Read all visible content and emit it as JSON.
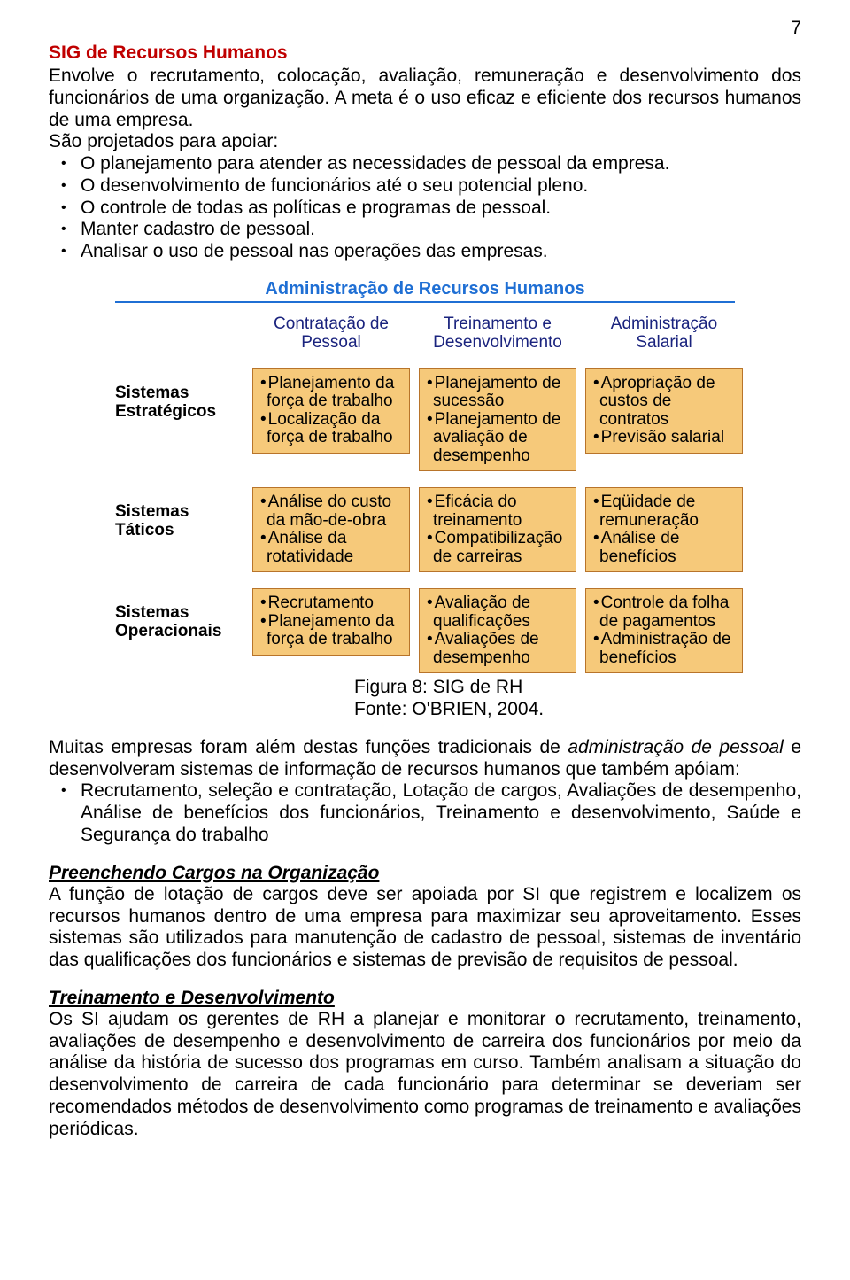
{
  "page_number": "7",
  "colors": {
    "title_red": "#c00000",
    "figure_blue": "#1f6fd4",
    "col_header": "#1a237e",
    "box_fill": "#f6c97a",
    "box_border": "#b8742a",
    "body_text": "#000000",
    "hr_blue": "#1f6fd4"
  },
  "section1": {
    "title": "SIG de Recursos Humanos",
    "p1": "Envolve o recrutamento, colocação, avaliação, remuneração e desenvolvimento dos funcionários de uma organização. A meta é o uso eficaz e eficiente dos recursos humanos de uma empresa.",
    "p2_intro": "São projetados para apoiar:",
    "bullets": [
      "O planejamento para atender as necessidades de pessoal da empresa.",
      "O desenvolvimento de funcionários até o seu potencial pleno.",
      "O controle de todas as políticas e programas de pessoal.",
      "Manter cadastro de pessoal.",
      "Analisar o uso de pessoal nas operações das empresas."
    ]
  },
  "figure": {
    "title": "Administração de Recursos Humanos",
    "col_headers": [
      "Contratação de Pessoal",
      "Treinamento e Desenvolvimento",
      "Administração Salarial"
    ],
    "row_labels": [
      "Sistemas Estratégicos",
      "Sistemas Táticos",
      "Sistemas Operacionais"
    ],
    "cells": [
      [
        [
          "Planejamento da força de trabalho",
          "Localização da força de trabalho"
        ],
        [
          "Planejamento de sucessão",
          "Planejamento de avaliação de desempenho"
        ],
        [
          "Apropriação de custos de contratos",
          "Previsão salarial"
        ]
      ],
      [
        [
          "Análise do custo da mão-de-obra",
          "Análise da rotatividade"
        ],
        [
          "Eficácia do treinamento",
          "Compatibilização de carreiras"
        ],
        [
          "Eqüidade de remuneração",
          "Análise de benefícios"
        ]
      ],
      [
        [
          "Recrutamento",
          "Planejamento da força de trabalho"
        ],
        [
          "Avaliação de qualificações",
          "Avaliações de desempenho"
        ],
        [
          "Controle da folha de pagamentos",
          "Administração de benefícios"
        ]
      ]
    ],
    "caption1": "Figura 8: SIG de RH",
    "caption2": "Fonte: O'BRIEN, 2004."
  },
  "section2": {
    "p1_pre": "Muitas empresas foram além destas funções tradicionais de ",
    "p1_italic": "administração de pessoal",
    "p1_post": " e desenvolveram sistemas de informação de recursos humanos que também apóiam:",
    "bullet_text": "Recrutamento, seleção e contratação, Lotação de cargos, Avaliações de desempenho, Análise de benefícios dos funcionários, Treinamento e desenvolvimento, Saúde e Segurança do trabalho"
  },
  "section3": {
    "title": "Preenchendo Cargos na Organização",
    "p": "A função de lotação de cargos deve ser apoiada por SI que registrem e localizem os recursos humanos dentro de uma empresa para maximizar seu aproveitamento. Esses sistemas são utilizados para manutenção de cadastro de pessoal, sistemas de inventário das qualificações dos funcionários e sistemas de previsão de requisitos de pessoal."
  },
  "section4": {
    "title": "Treinamento e Desenvolvimento",
    "p": "Os SI ajudam os gerentes de RH a planejar e monitorar o recrutamento, treinamento, avaliações de desempenho e desenvolvimento de carreira dos funcionários por meio da análise da história de sucesso dos programas em curso. Também analisam a situação do desenvolvimento de carreira de cada funcionário para determinar se deveriam ser recomendados métodos de desenvolvimento como programas de treinamento e avaliações periódicas."
  }
}
